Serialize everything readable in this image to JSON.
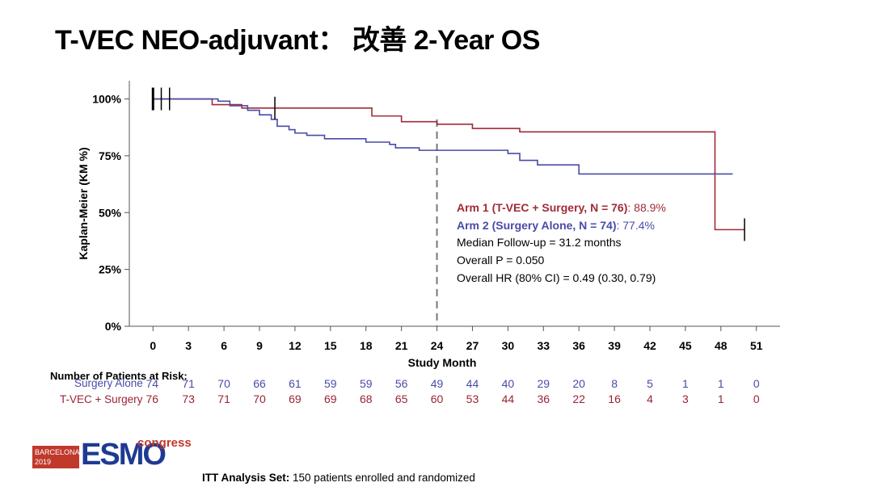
{
  "title": "T-VEC NEO-adjuvant： 改善 2-Year OS",
  "chart_data": {
    "type": "line",
    "xlabel": "Study Month",
    "ylabel": "Kaplan-Meier (KM %)",
    "x_ticks": [
      0,
      3,
      6,
      9,
      12,
      15,
      18,
      21,
      24,
      27,
      30,
      33,
      36,
      39,
      42,
      45,
      48,
      51
    ],
    "y_ticks": [
      {
        "value": 0,
        "label": "0%"
      },
      {
        "value": 25,
        "label": "25%"
      },
      {
        "value": 50,
        "label": "50%"
      },
      {
        "value": 75,
        "label": "75%"
      },
      {
        "value": 100,
        "label": "100%"
      }
    ],
    "xlim": [
      -2,
      53
    ],
    "ylim": [
      0,
      108
    ],
    "reference_line_x": 24,
    "series": [
      {
        "name": "Arm 1 (T-VEC + Surgery, N = 76)",
        "color": "#a12a38",
        "steps": [
          [
            0,
            100
          ],
          [
            5,
            97.5
          ],
          [
            7.5,
            96
          ],
          [
            18.5,
            92.5
          ],
          [
            21,
            90
          ],
          [
            24,
            88.9
          ],
          [
            27,
            87
          ],
          [
            31,
            85.5
          ],
          [
            47.5,
            85.5
          ],
          [
            47.5,
            42.5
          ],
          [
            50,
            42.5
          ]
        ],
        "censor_ticks": [
          [
            0,
            100
          ],
          [
            50,
            42.5
          ]
        ]
      },
      {
        "name": "Arm 2 (Surgery Alone, N = 74)",
        "color": "#4a4aa8",
        "steps": [
          [
            0,
            100
          ],
          [
            5.5,
            99
          ],
          [
            6.5,
            97
          ],
          [
            8,
            95
          ],
          [
            9,
            93
          ],
          [
            10,
            91
          ],
          [
            10.5,
            88
          ],
          [
            11.5,
            86.5
          ],
          [
            12,
            85
          ],
          [
            13,
            84
          ],
          [
            14.5,
            82.5
          ],
          [
            18,
            81
          ],
          [
            20,
            80
          ],
          [
            20.5,
            78.5
          ],
          [
            22.5,
            77.4
          ],
          [
            30,
            76
          ],
          [
            31,
            73
          ],
          [
            32.5,
            71
          ],
          [
            36,
            67
          ],
          [
            49,
            67
          ]
        ],
        "censor_ticks": [
          [
            0.7,
            100
          ],
          [
            1.4,
            100
          ],
          [
            10.3,
            96
          ]
        ]
      }
    ],
    "annotation": {
      "arm1_label": "Arm 1 (T-VEC + Surgery, N = 76)",
      "arm1_value": ": 88.9%",
      "arm2_label": "Arm 2 (Surgery Alone, N = 74)",
      "arm2_value": ": 77.4%",
      "line3": "Median Follow-up = 31.2 months",
      "line4": "Overall P = 0.050",
      "line5": "Overall HR  (80% CI) = 0.49 (0.30, 0.79)"
    },
    "at_risk": {
      "title": "Number of Patients at Risk:",
      "rows": [
        {
          "label": "Surgery Alone",
          "color": "#4a4aa8",
          "values": [
            74,
            71,
            70,
            66,
            61,
            59,
            59,
            56,
            49,
            44,
            40,
            29,
            20,
            8,
            5,
            1,
            1,
            0
          ]
        },
        {
          "label": "T-VEC + Surgery",
          "color": "#9b2335",
          "values": [
            76,
            73,
            71,
            70,
            69,
            69,
            68,
            65,
            60,
            53,
            44,
            36,
            22,
            16,
            4,
            3,
            1,
            0
          ]
        }
      ]
    }
  },
  "logo": {
    "city": "BARCELONA",
    "year": "2019",
    "brand": "ESMO",
    "word": "congress"
  },
  "footnote": {
    "bold": "ITT Analysis Set:",
    "text": " 150 patients enrolled and randomized"
  }
}
